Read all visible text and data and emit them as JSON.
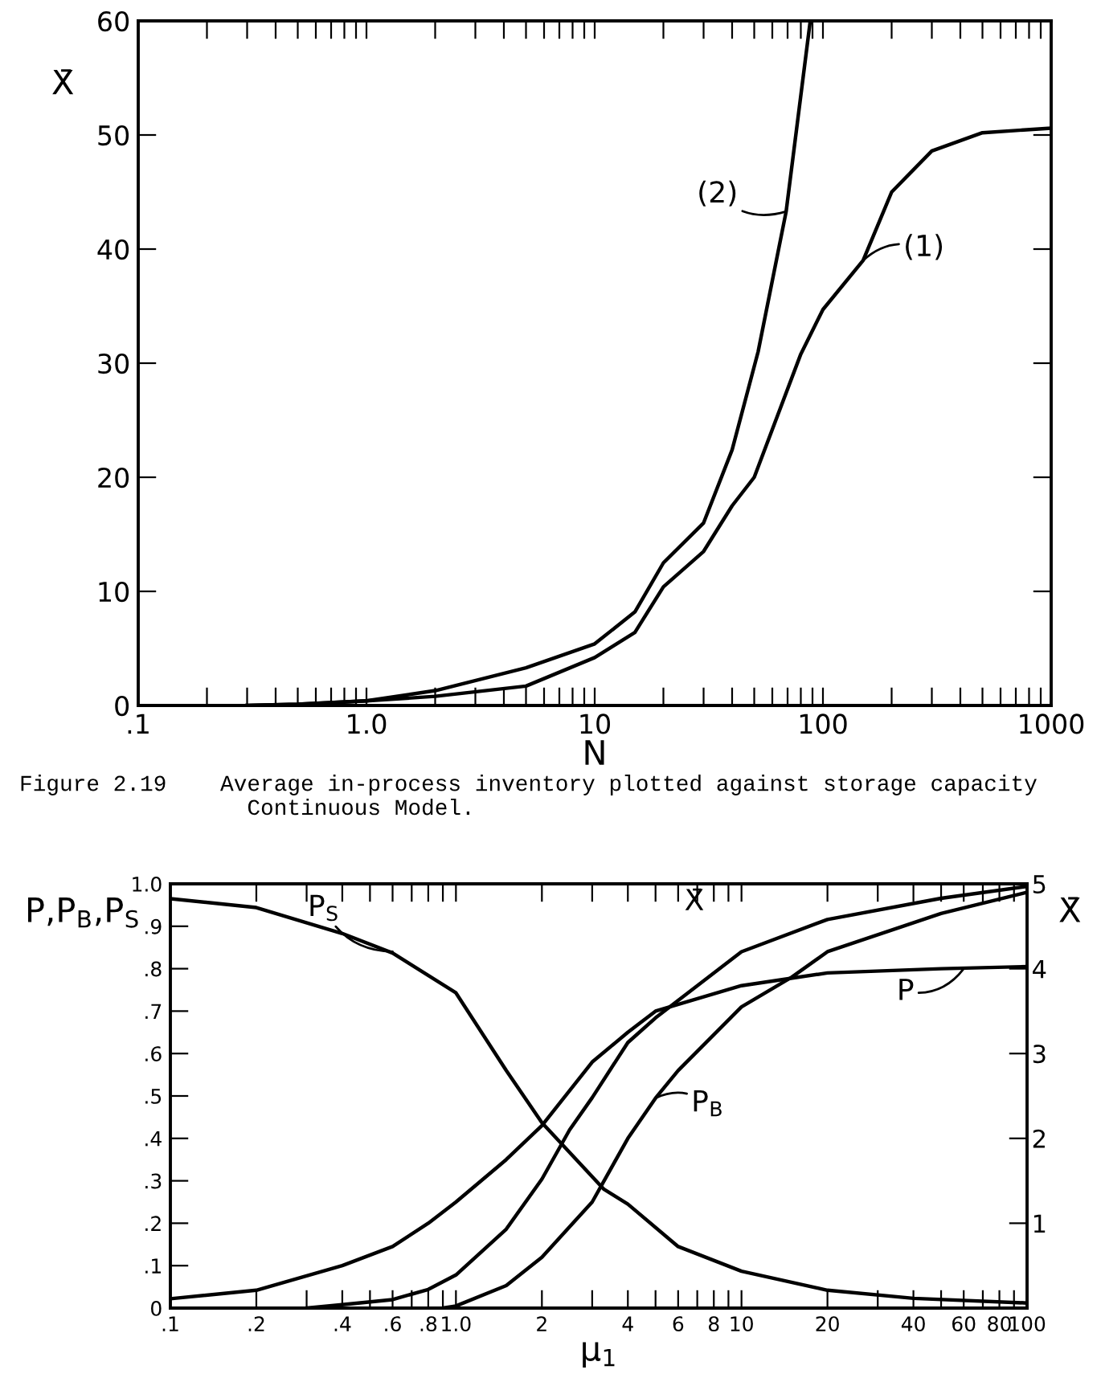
{
  "chart_data": [
    {
      "type": "line",
      "xlabel": "N",
      "ylabel": "X̄",
      "log": "x",
      "grid": false,
      "legend": false,
      "xlim": [
        0.1,
        1000
      ],
      "ylim": [
        0,
        60
      ],
      "xticks": [
        {
          "value": 0.1,
          "label": ".1"
        },
        {
          "value": 0.2,
          "label": null
        },
        {
          "value": 0.3,
          "label": null
        },
        {
          "value": 0.4,
          "label": null
        },
        {
          "value": 0.5,
          "label": null
        },
        {
          "value": 0.6,
          "label": null
        },
        {
          "value": 0.7,
          "label": null
        },
        {
          "value": 0.8,
          "label": null
        },
        {
          "value": 0.9,
          "label": null
        },
        {
          "value": 1,
          "label": "1.0"
        },
        {
          "value": 2,
          "label": null
        },
        {
          "value": 3,
          "label": null
        },
        {
          "value": 4,
          "label": null
        },
        {
          "value": 5,
          "label": null
        },
        {
          "value": 6,
          "label": null
        },
        {
          "value": 7,
          "label": null
        },
        {
          "value": 8,
          "label": null
        },
        {
          "value": 9,
          "label": null
        },
        10,
        {
          "value": 20,
          "label": null
        },
        {
          "value": 30,
          "label": null
        },
        {
          "value": 40,
          "label": null
        },
        {
          "value": 50,
          "label": null
        },
        {
          "value": 60,
          "label": null
        },
        {
          "value": 70,
          "label": null
        },
        {
          "value": 80,
          "label": null
        },
        {
          "value": 90,
          "label": null
        },
        100,
        {
          "value": 200,
          "label": null
        },
        {
          "value": 300,
          "label": null
        },
        {
          "value": 400,
          "label": null
        },
        {
          "value": 500,
          "label": null
        },
        {
          "value": 600,
          "label": null
        },
        {
          "value": 700,
          "label": null
        },
        {
          "value": 800,
          "label": null
        },
        {
          "value": 900,
          "label": null
        },
        1000
      ],
      "yticks": [
        0,
        10,
        20,
        30,
        40,
        50,
        60
      ],
      "series": [
        {
          "color": "#000000",
          "x": [
            0.3,
            0.5,
            1,
            2,
            5,
            10,
            15,
            20,
            30,
            40,
            50,
            80,
            100,
            150,
            200,
            300,
            500,
            1000
          ],
          "values": [
            0,
            0.1,
            0.4,
            0.8,
            1.7,
            4.2,
            6.4,
            10.4,
            13.5,
            17.5,
            20,
            30.8,
            34.7,
            39,
            45,
            48.6,
            50.2,
            50.6
          ]
        },
        {
          "color": "#000000",
          "x": [
            0.3,
            0.5,
            1,
            2,
            5,
            10,
            15,
            20,
            30,
            40,
            52,
            69,
            88
          ],
          "values": [
            0,
            0.1,
            0.4,
            1.3,
            3.3,
            5.4,
            8.2,
            12.5,
            16,
            22.4,
            31,
            43.3,
            60
          ]
        }
      ],
      "annotations": [
        {
          "text": "(1)",
          "x": 150,
          "y": 39
        },
        {
          "text": "(2)",
          "x": 69,
          "y": 43.3
        },
        "Figure 2.19    Average in-process inventory plotted against storage capacity\n                 Continuous Model."
      ]
    },
    {
      "type": "line",
      "xlabel": "μ$_{1}$",
      "ylabel": "P,P$_{B}$,P$_{S}$",
      "y2label": "X̄",
      "log": "x",
      "grid": false,
      "legend": false,
      "xlim": [
        0.1,
        100
      ],
      "ylim": [
        0,
        1.0
      ],
      "y2lim": [
        0,
        5
      ],
      "xticks": [
        {
          "value": 0.1,
          "label": ".1"
        },
        {
          "value": 0.2,
          "label": ".2"
        },
        {
          "value": 0.3,
          "label": null
        },
        {
          "value": 0.4,
          "label": ".4"
        },
        {
          "value": 0.5,
          "label": null
        },
        {
          "value": 0.6,
          "label": ".6"
        },
        {
          "value": 0.7,
          "label": null
        },
        {
          "value": 0.8,
          "label": ".8"
        },
        {
          "value": 0.9,
          "label": null
        },
        {
          "value": 1,
          "label": "1.0"
        },
        2,
        {
          "value": 3,
          "label": null
        },
        4,
        {
          "value": 5,
          "label": null
        },
        6,
        {
          "value": 7,
          "label": null
        },
        8,
        {
          "value": 9,
          "label": null
        },
        10,
        20,
        {
          "value": 30,
          "label": null
        },
        40,
        {
          "value": 50,
          "label": null
        },
        60,
        {
          "value": 70,
          "label": null
        },
        80,
        {
          "value": 90,
          "label": null
        },
        100
      ],
      "yticks": [
        0,
        {
          "value": 0.1,
          "label": ".1"
        },
        {
          "value": 0.2,
          "label": ".2"
        },
        {
          "value": 0.3,
          "label": ".3"
        },
        {
          "value": 0.4,
          "label": ".4"
        },
        {
          "value": 0.5,
          "label": ".5"
        },
        {
          "value": 0.6,
          "label": ".6"
        },
        {
          "value": 0.7,
          "label": ".7"
        },
        {
          "value": 0.8,
          "label": ".8"
        },
        {
          "value": 0.9,
          "label": ".9"
        },
        {
          "value": 1.0,
          "label": "1.0"
        }
      ],
      "y2ticks": [
        1,
        2,
        3,
        4,
        5
      ],
      "series": [
        {
          "color": "#000000",
          "x": [
            0.1,
            0.2,
            0.4,
            0.6,
            1,
            1.5,
            2,
            3.3,
            4,
            6,
            10,
            20,
            40,
            100
          ],
          "values": [
            0.965,
            0.944,
            0.883,
            0.837,
            0.743,
            0.56,
            0.437,
            0.28,
            0.245,
            0.145,
            0.087,
            0.042,
            0.023,
            0.012
          ]
        },
        {
          "color": "#000000",
          "x": [
            0.1,
            0.2,
            0.4,
            0.6,
            0.8,
            1,
            1.5,
            2,
            3,
            4,
            5,
            10,
            20,
            50,
            100
          ],
          "values": [
            0.022,
            0.042,
            0.1,
            0.145,
            0.2,
            0.25,
            0.35,
            0.43,
            0.58,
            0.65,
            0.7,
            0.76,
            0.79,
            0.8,
            0.805
          ]
        },
        {
          "color": "#000000",
          "x": [
            0.9,
            1,
            1.5,
            2,
            3,
            4,
            5,
            6,
            10,
            15,
            20,
            50,
            100
          ],
          "values": [
            0,
            0.005,
            0.053,
            0.12,
            0.25,
            0.4,
            0.495,
            0.56,
            0.71,
            0.78,
            0.84,
            0.93,
            0.98
          ]
        },
        {
          "color": "#000000",
          "axis": "y2",
          "x": [
            0.3,
            0.4,
            0.6,
            0.8,
            1,
            1.5,
            2,
            2.5,
            3,
            4,
            5,
            10,
            20,
            50,
            100
          ],
          "values": [
            0,
            0.04,
            0.1,
            0.22,
            0.39,
            0.93,
            1.52,
            2.1,
            2.48,
            3.13,
            3.42,
            4.2,
            4.58,
            4.83,
            4.97
          ]
        }
      ],
      "annotations": [
        {
          "text": "P$_{S}$",
          "x": 0.6,
          "y": 0.84
        },
        "X̄",
        {
          "text": "P",
          "x": 60,
          "y": 0.8
        },
        {
          "text": "P$_{B}$",
          "x": 5,
          "y": 0.495
        }
      ]
    }
  ]
}
